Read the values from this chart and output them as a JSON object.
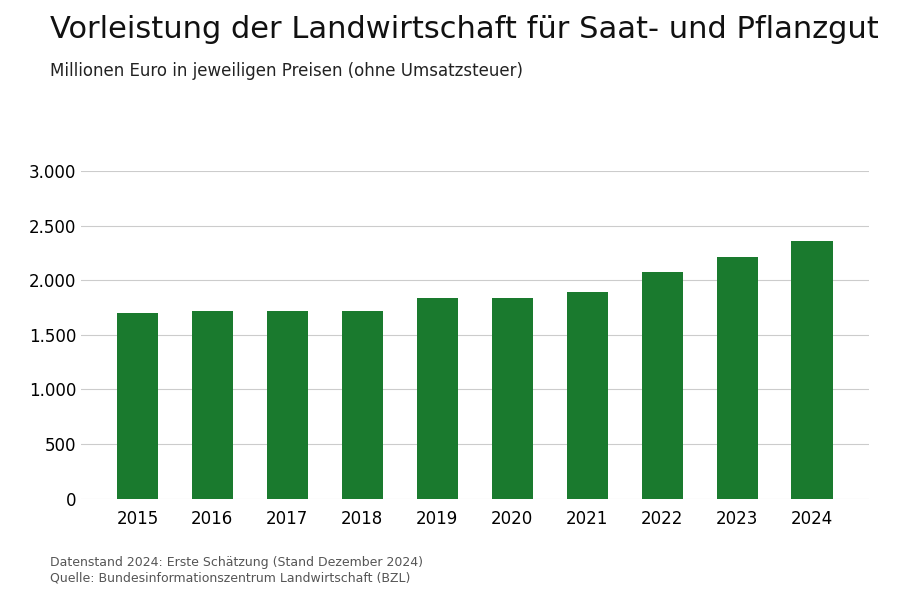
{
  "title": "Vorleistung der Landwirtschaft für Saat- und Pflanzgut",
  "subtitle": "Millionen Euro in jeweiligen Preisen (ohne Umsatzsteuer)",
  "categories": [
    2015,
    2016,
    2017,
    2018,
    2019,
    2020,
    2021,
    2022,
    2023,
    2024
  ],
  "values": [
    1700,
    1720,
    1720,
    1720,
    1840,
    1840,
    1890,
    2080,
    2210,
    2360
  ],
  "bar_color": "#1a7a2e",
  "ylim": [
    0,
    3000
  ],
  "yticks": [
    0,
    500,
    1000,
    1500,
    2000,
    2500,
    3000
  ],
  "grid_color": "#cccccc",
  "background_color": "#ffffff",
  "footnote_line1": "Datenstand 2024: Erste Schätzung (Stand Dezember 2024)",
  "footnote_line2": "Quelle: Bundesinformationszentrum Landwirtschaft (BZL)",
  "title_fontsize": 22,
  "subtitle_fontsize": 12,
  "tick_fontsize": 12,
  "footnote_fontsize": 9
}
